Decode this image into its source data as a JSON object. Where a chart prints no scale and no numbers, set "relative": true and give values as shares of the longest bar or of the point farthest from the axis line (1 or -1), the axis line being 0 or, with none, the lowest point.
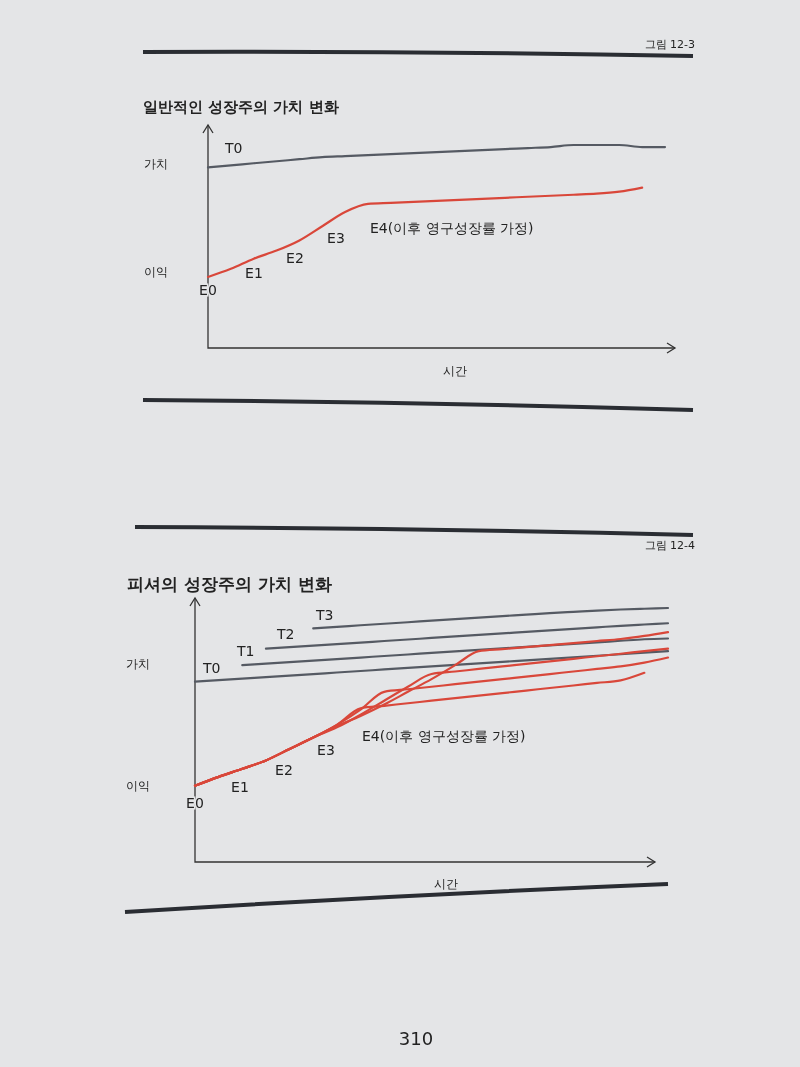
{
  "chart_data": [
    {
      "type": "line",
      "title": "일반적인 성장주의 가치 변화",
      "xlabel": "시간",
      "relative": true,
      "categories": [
        null,
        null,
        null,
        null,
        null,
        null,
        null,
        null,
        null,
        null,
        null,
        null,
        null,
        null,
        null,
        null,
        null,
        null,
        null,
        null,
        null
      ],
      "series": [
        {
          "name": "T0",
          "color": "#555a63",
          "values": [
            0.89,
            0.9,
            0.91,
            0.92,
            0.93,
            0.94,
            0.945,
            0.95,
            0.955,
            0.96,
            0.965,
            0.97,
            0.975,
            0.98,
            0.985,
            0.99,
            1.0,
            1.0,
            1.0,
            0.99,
            0.99
          ]
        },
        {
          "color": "#d9473a",
          "values": [
            0.35,
            0.39,
            0.44,
            0.48,
            0.53,
            0.6,
            0.67,
            0.71,
            0.715,
            0.72,
            0.725,
            0.73,
            0.735,
            0.74,
            0.745,
            0.75,
            0.755,
            0.76,
            0.77,
            0.79,
            null
          ]
        }
      ],
      "annotations": [
        "그림 12-3",
        "가치",
        "이익",
        "E0",
        "E1",
        "E2",
        "E3",
        "E4(이후 영구성장률 가정)"
      ]
    },
    {
      "type": "line",
      "title": "피셔의 성장주의 가치 변화",
      "xlabel": "시간",
      "relative": true,
      "categories": [
        null,
        null,
        null,
        null,
        null,
        null,
        null,
        null,
        null,
        null,
        null,
        null,
        null,
        null,
        null,
        null,
        null,
        null,
        null,
        null,
        null
      ],
      "series": [
        {
          "name": "T0",
          "color": "#555a63",
          "values": [
            0.71,
            0.716,
            0.722,
            0.728,
            0.734,
            0.74,
            0.746,
            0.752,
            0.758,
            0.764,
            0.77,
            0.776,
            0.782,
            0.788,
            0.794,
            0.8,
            0.806,
            0.812,
            0.818,
            0.824,
            0.83
          ]
        },
        {
          "name": "T1",
          "color": "#555a63",
          "values": [
            null,
            null,
            0.775,
            0.781,
            0.787,
            0.793,
            0.799,
            0.805,
            0.811,
            0.817,
            0.823,
            0.829,
            0.835,
            0.841,
            0.847,
            0.853,
            0.859,
            0.865,
            0.871,
            0.877,
            0.88
          ]
        },
        {
          "name": "T2",
          "color": "#555a63",
          "values": [
            null,
            null,
            null,
            0.84,
            0.846,
            0.852,
            0.858,
            0.864,
            0.87,
            0.876,
            0.882,
            0.888,
            0.894,
            0.9,
            0.906,
            0.912,
            0.918,
            0.924,
            0.93,
            0.935,
            0.94
          ]
        },
        {
          "name": "T3",
          "color": "#555a63",
          "values": [
            null,
            null,
            null,
            null,
            null,
            0.92,
            0.926,
            0.932,
            0.938,
            0.944,
            0.95,
            0.956,
            0.962,
            0.968,
            0.974,
            0.98,
            0.985,
            0.99,
            0.994,
            0.997,
            1.0
          ]
        },
        {
          "color": "#d9473a",
          "values": [
            0.3,
            0.335,
            0.367,
            0.4,
            0.445,
            0.49,
            0.54,
            0.605,
            0.615,
            0.625,
            0.635,
            0.645,
            0.655,
            0.665,
            0.675,
            0.685,
            0.695,
            0.705,
            0.715,
            0.745,
            null
          ]
        },
        {
          "color": "#d9473a",
          "values": [
            0.3,
            0.335,
            0.367,
            0.4,
            0.445,
            0.49,
            0.54,
            0.6,
            0.67,
            0.68,
            0.69,
            0.7,
            0.71,
            0.72,
            0.73,
            0.74,
            0.75,
            0.76,
            0.77,
            0.785,
            0.805
          ]
        },
        {
          "color": "#d9473a",
          "values": [
            0.3,
            0.335,
            0.367,
            0.4,
            0.445,
            0.49,
            0.53,
            0.58,
            0.635,
            0.69,
            0.74,
            0.75,
            0.76,
            0.77,
            0.78,
            0.79,
            0.8,
            0.81,
            0.82,
            0.83,
            0.84
          ]
        },
        {
          "color": "#d9473a",
          "values": [
            0.3,
            0.335,
            0.367,
            0.4,
            0.445,
            0.49,
            0.535,
            0.575,
            0.62,
            0.67,
            0.72,
            0.775,
            0.83,
            0.838,
            0.846,
            0.854,
            0.862,
            0.87,
            0.878,
            0.89,
            0.905
          ]
        }
      ],
      "annotations": [
        "그림 12-4",
        "가치",
        "이익",
        "E0",
        "E1",
        "E2",
        "E3",
        "E4(이후 영구성장률 가정)",
        "310"
      ]
    }
  ]
}
